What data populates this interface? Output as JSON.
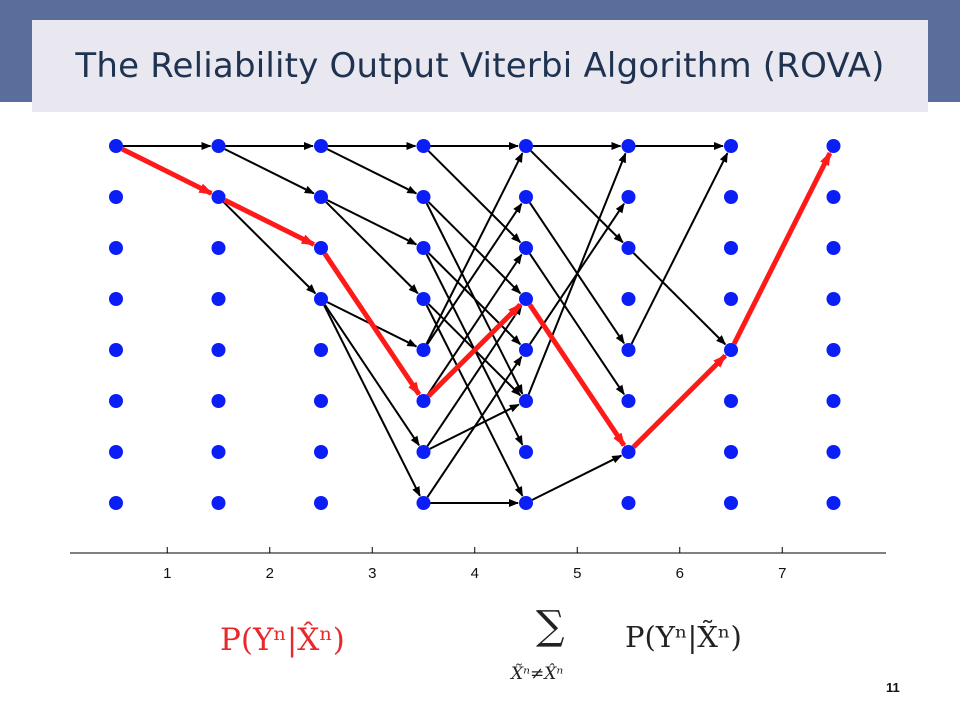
{
  "title": "The Reliability Output Viterbi Algorithm (ROVA)",
  "colors": {
    "band": "#5a6e9b",
    "title_box": "#e9e8f1",
    "title_text": "#1f3350",
    "node": "#0a1ef5",
    "path_red": "#ff1a1a",
    "edge": "#000000"
  },
  "trellis": {
    "columns": 8,
    "states": 8,
    "axis_ticks": [
      "1",
      "2",
      "3",
      "4",
      "5",
      "6",
      "7"
    ],
    "black_edges": [
      [
        0,
        0,
        1,
        0
      ],
      [
        0,
        0,
        1,
        1
      ],
      [
        1,
        0,
        2,
        0
      ],
      [
        1,
        0,
        2,
        1
      ],
      [
        1,
        1,
        2,
        3
      ],
      [
        2,
        0,
        3,
        0
      ],
      [
        2,
        0,
        3,
        1
      ],
      [
        2,
        1,
        3,
        2
      ],
      [
        2,
        1,
        3,
        3
      ],
      [
        2,
        3,
        3,
        4
      ],
      [
        2,
        3,
        3,
        6
      ],
      [
        2,
        3,
        3,
        7
      ],
      [
        3,
        0,
        4,
        0
      ],
      [
        3,
        0,
        4,
        2
      ],
      [
        3,
        1,
        4,
        3
      ],
      [
        3,
        1,
        4,
        5
      ],
      [
        3,
        2,
        4,
        4
      ],
      [
        3,
        2,
        4,
        6
      ],
      [
        3,
        3,
        4,
        5
      ],
      [
        3,
        3,
        4,
        7
      ],
      [
        3,
        4,
        4,
        0
      ],
      [
        3,
        4,
        4,
        1
      ],
      [
        3,
        5,
        4,
        2
      ],
      [
        3,
        6,
        4,
        3
      ],
      [
        3,
        6,
        4,
        5
      ],
      [
        3,
        7,
        4,
        4
      ],
      [
        3,
        7,
        4,
        7
      ],
      [
        4,
        0,
        5,
        0
      ],
      [
        4,
        0,
        5,
        2
      ],
      [
        4,
        1,
        5,
        4
      ],
      [
        4,
        2,
        5,
        5
      ],
      [
        4,
        4,
        5,
        1
      ],
      [
        4,
        5,
        5,
        0
      ],
      [
        4,
        7,
        5,
        6
      ],
      [
        5,
        0,
        6,
        0
      ],
      [
        5,
        2,
        6,
        4
      ],
      [
        5,
        4,
        6,
        0
      ]
    ],
    "red_path": [
      [
        0,
        0
      ],
      [
        1,
        1
      ],
      [
        2,
        2
      ],
      [
        3,
        5
      ],
      [
        4,
        3
      ],
      [
        5,
        6
      ],
      [
        6,
        4
      ],
      [
        7,
        0
      ]
    ]
  },
  "formulas": {
    "ml_prob": "P(Yⁿ|X̂ⁿ)",
    "sum_symbol": "∑",
    "sum_subscript": "X̃ⁿ≠X̂ⁿ",
    "sum_term": "P(Yⁿ|X̃ⁿ)"
  },
  "page_number": "11"
}
